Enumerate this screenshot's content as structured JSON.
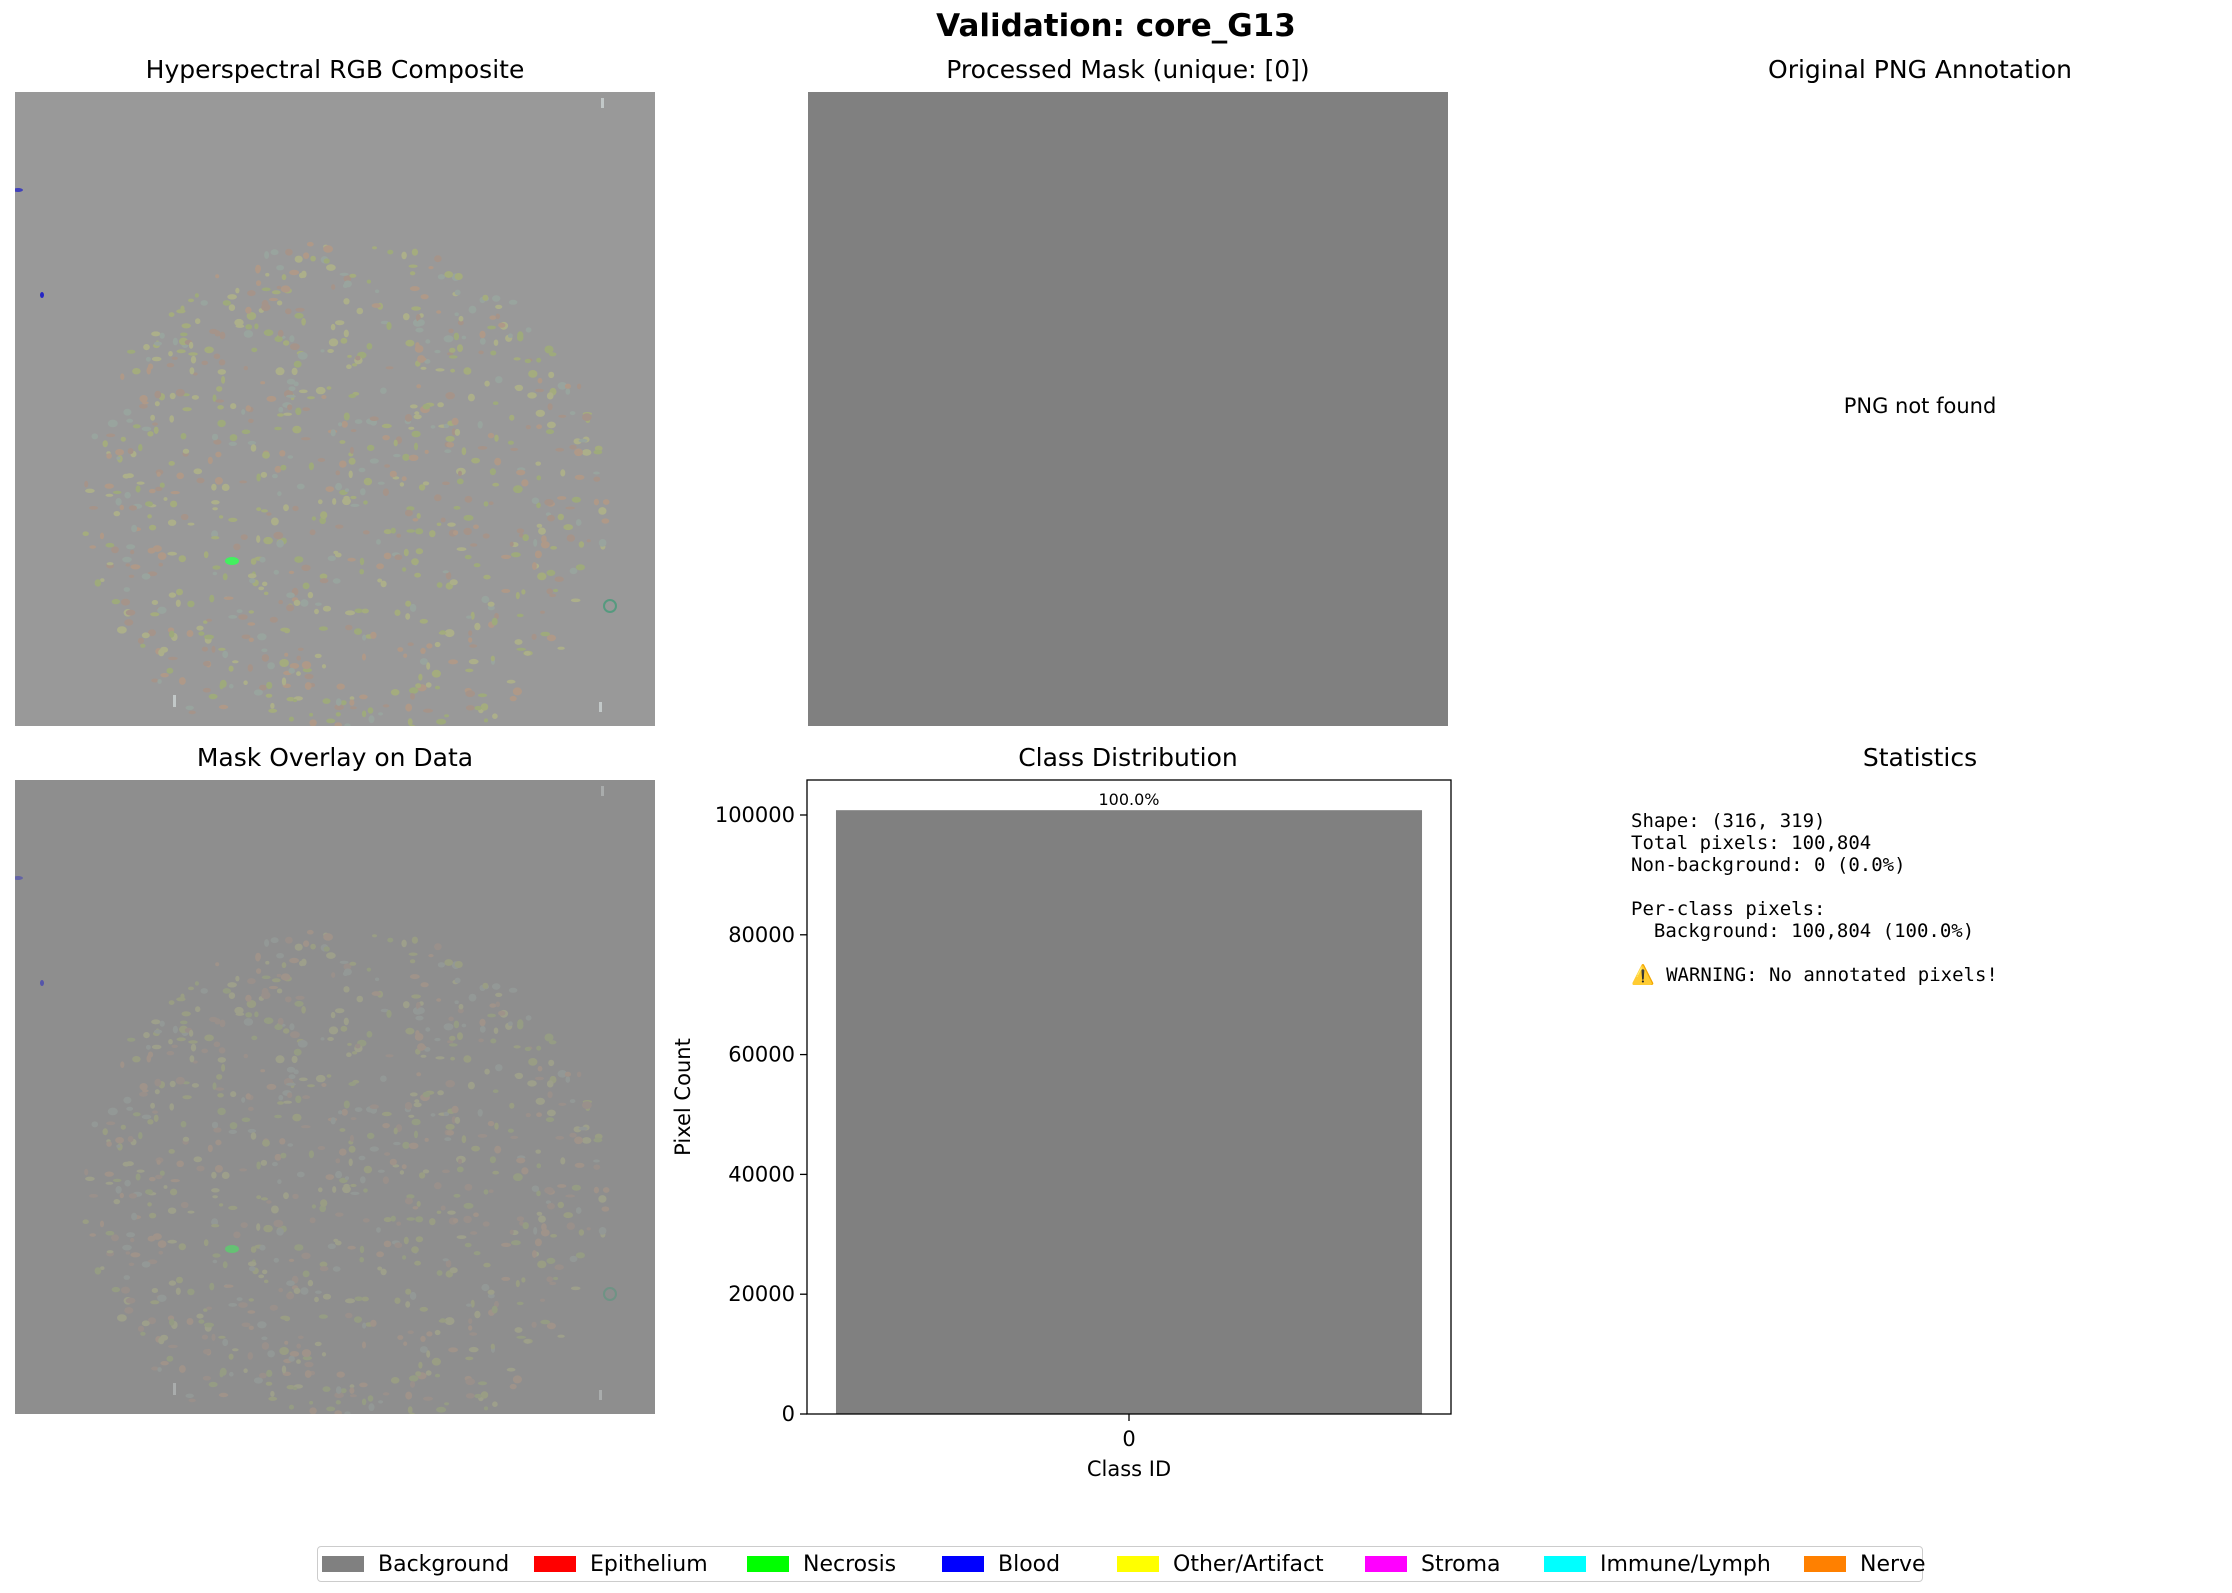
{
  "figure": {
    "suptitle": "Validation: core_G13"
  },
  "panels": {
    "rgb": {
      "title": "Hyperspectral RGB Composite"
    },
    "mask": {
      "title": "Processed Mask (unique: [0])"
    },
    "png": {
      "title": "Original PNG Annotation",
      "message": "PNG not found"
    },
    "overlay": {
      "title": "Mask Overlay on Data"
    },
    "dist": {
      "title": "Class Distribution"
    },
    "stats": {
      "title": "Statistics",
      "lines": [
        "Shape: (316, 319)",
        "Total pixels: 100,804",
        "Non-background: 0 (0.0%)",
        "",
        "Per-class pixels:",
        "  Background: 100,804 (100.0%)",
        "",
        "⚠️ WARNING: No annotated pixels!"
      ]
    }
  },
  "chart_data": {
    "type": "bar",
    "title": "Class Distribution",
    "categories": [
      "0"
    ],
    "values": [
      100804
    ],
    "bar_labels": [
      "100.0%"
    ],
    "xlabel": "Class ID",
    "ylabel": "Pixel Count",
    "ylim": [
      0,
      105842
    ],
    "yticks": [
      0,
      20000,
      40000,
      60000,
      80000,
      100000
    ],
    "bar_color": "#808080",
    "grid": false
  },
  "legend": {
    "placement": "bottom-center",
    "items": [
      {
        "label": "Background",
        "color": "#808080"
      },
      {
        "label": "Epithelium",
        "color": "#ff0000"
      },
      {
        "label": "Necrosis",
        "color": "#00ff00"
      },
      {
        "label": "Blood",
        "color": "#0000ff"
      },
      {
        "label": "Other/Artifact",
        "color": "#ffff00"
      },
      {
        "label": "Stroma",
        "color": "#ff00ff"
      },
      {
        "label": "Immune/Lymph",
        "color": "#00ffff"
      },
      {
        "label": "Nerve",
        "color": "#ff8000"
      }
    ]
  },
  "colors": {
    "rgb_background": "#999999",
    "mask_fill": "#808080",
    "overlay_background": "#8e8e8e"
  }
}
